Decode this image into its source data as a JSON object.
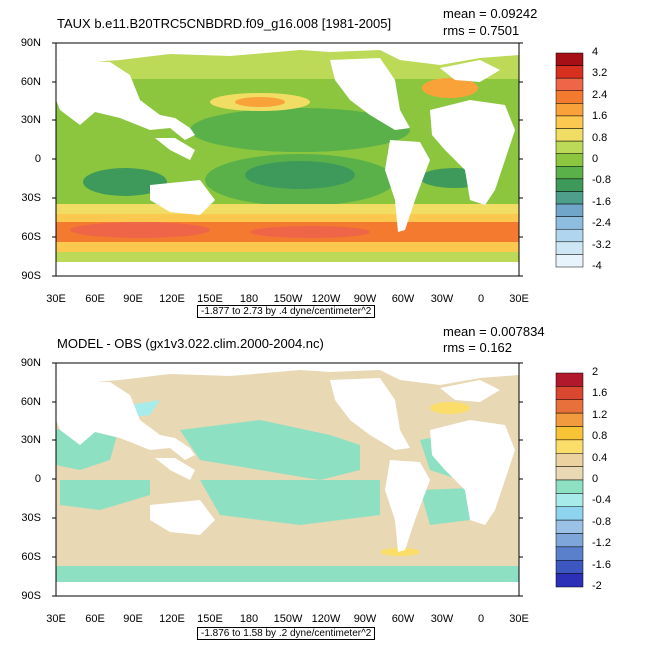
{
  "top": {
    "title": "TAUX b.e11.B20TRC5CNBDRD.f09_g16.008 [1981-2005]",
    "mean": "mean = 0.09242",
    "rms": "rms = 0.7501",
    "range": "-1.877 to 2.73 by .4 dyne/centimeter^2",
    "lat_labels": [
      "90N",
      "60N",
      "30N",
      "0",
      "30S",
      "60S",
      "90S"
    ],
    "lon_labels": [
      "30E",
      "60E",
      "90E",
      "120E",
      "150E",
      "180",
      "150W",
      "120W",
      "90W",
      "60W",
      "30W",
      "0",
      "30E"
    ],
    "colorbar_labels": [
      "4",
      "3.2",
      "2.4",
      "1.6",
      "0.8",
      "0",
      "-0.8",
      "-1.6",
      "-2.4",
      "-3.2",
      "-4"
    ],
    "colorbar_colors": [
      "#a50f15",
      "#d7301f",
      "#ef6548",
      "#f47a30",
      "#f9a23a",
      "#fcc850",
      "#f2dd64",
      "#bcd957",
      "#8cc63f",
      "#5ab14a",
      "#3e9a5a",
      "#4d9e8a",
      "#6fa6c9",
      "#8fbde0",
      "#b0d5ee",
      "#cfe7f5",
      "#e8f4fb"
    ]
  },
  "bottom": {
    "title": "MODEL - OBS (gx1v3.022.clim.2000-2004.nc)",
    "mean": "mean = 0.007834",
    "rms": "rms = 0.162",
    "range": "-1.876 to 1.58 by .2 dyne/centimeter^2",
    "lat_labels": [
      "90N",
      "60N",
      "30N",
      "0",
      "30S",
      "60S",
      "90S"
    ],
    "lon_labels": [
      "30E",
      "60E",
      "90E",
      "120E",
      "150E",
      "180",
      "150W",
      "120W",
      "90W",
      "60W",
      "30W",
      "0",
      "30E"
    ],
    "colorbar_labels": [
      "2",
      "1.6",
      "1.2",
      "0.8",
      "0.4",
      "0",
      "-0.4",
      "-0.8",
      "-1.2",
      "-1.6",
      "-2"
    ],
    "colorbar_colors": [
      "#b2182b",
      "#d94730",
      "#e8703a",
      "#f29b3e",
      "#f8c335",
      "#fbdd6a",
      "#ecd29f",
      "#e8d8b4",
      "#8ee0c3",
      "#a7ecea",
      "#8fd4ef",
      "#9cc1e6",
      "#7ea6da",
      "#5a7fcb",
      "#3e57c0",
      "#2c30b8"
    ]
  }
}
